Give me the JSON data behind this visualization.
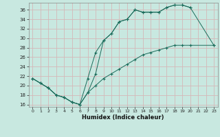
{
  "title": "",
  "xlabel": "Humidex (Indice chaleur)",
  "bg_color": "#c8e8e0",
  "grid_color": "#d4b8b8",
  "line_color": "#1a6b5a",
  "xlim": [
    -0.5,
    23.5
  ],
  "ylim": [
    15.5,
    37.5
  ],
  "xticks": [
    0,
    1,
    2,
    3,
    4,
    5,
    6,
    7,
    8,
    9,
    10,
    11,
    12,
    13,
    14,
    15,
    16,
    17,
    18,
    19,
    20,
    21,
    22,
    23
  ],
  "yticks": [
    16,
    18,
    20,
    22,
    24,
    26,
    28,
    30,
    32,
    34,
    36
  ],
  "line1_x": [
    0,
    1,
    2,
    3,
    4,
    5,
    6,
    7,
    8,
    9,
    10,
    11,
    12,
    13,
    14,
    15,
    16,
    17,
    18,
    19,
    20
  ],
  "line1_y": [
    21.5,
    20.5,
    19.5,
    18.0,
    17.5,
    16.5,
    16.0,
    18.5,
    22.5,
    29.5,
    31.0,
    33.5,
    34.0,
    36.0,
    35.5,
    35.5,
    35.5,
    36.5,
    37.0,
    37.0,
    36.5
  ],
  "line2_x": [
    0,
    1,
    2,
    3,
    4,
    5,
    6,
    7,
    8,
    9,
    10,
    11,
    12,
    13,
    14,
    15,
    16,
    17,
    18,
    19,
    20,
    23
  ],
  "line2_y": [
    21.5,
    20.5,
    19.5,
    18.0,
    17.5,
    16.5,
    16.0,
    21.5,
    27.0,
    29.5,
    31.0,
    33.5,
    34.0,
    36.0,
    35.5,
    35.5,
    35.5,
    36.5,
    37.0,
    37.0,
    36.5,
    28.5
  ],
  "line3_x": [
    0,
    1,
    2,
    3,
    4,
    5,
    6,
    7,
    8,
    9,
    10,
    11,
    12,
    13,
    14,
    15,
    16,
    17,
    18,
    19,
    20,
    23
  ],
  "line3_y": [
    21.5,
    20.5,
    19.5,
    18.0,
    17.5,
    16.5,
    16.0,
    18.5,
    20.0,
    21.5,
    22.5,
    23.5,
    24.5,
    25.5,
    26.5,
    27.0,
    27.5,
    28.0,
    28.5,
    28.5,
    28.5,
    28.5
  ]
}
